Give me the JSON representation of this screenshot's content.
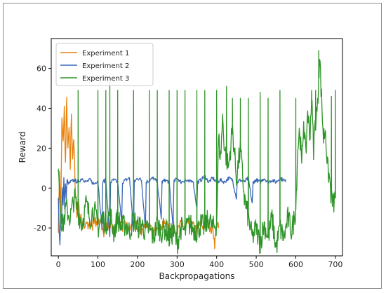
{
  "chart_data": {
    "type": "line",
    "xlabel": "Backpropagations",
    "ylabel": "Reward",
    "xlim": [
      -18,
      718
    ],
    "ylim": [
      -34,
      75
    ],
    "xticks": [
      0,
      100,
      200,
      300,
      400,
      500,
      600,
      700
    ],
    "yticks": [
      -20,
      0,
      20,
      40,
      60
    ],
    "legend_position": "top-left",
    "grid": false,
    "series": [
      {
        "name": "Experiment 1",
        "color": "#e8820c",
        "anchors": [
          [
            0,
            -20
          ],
          [
            3,
            10
          ],
          [
            6,
            -15
          ],
          [
            9,
            35
          ],
          [
            12,
            22
          ],
          [
            15,
            40
          ],
          [
            18,
            12
          ],
          [
            21,
            44
          ],
          [
            24,
            18
          ],
          [
            27,
            30
          ],
          [
            30,
            10
          ],
          [
            33,
            38
          ],
          [
            36,
            15
          ],
          [
            39,
            24
          ],
          [
            42,
            5
          ],
          [
            45,
            -10
          ],
          [
            48,
            -15
          ],
          [
            51,
            -5
          ],
          [
            54,
            -18
          ],
          [
            57,
            -12
          ],
          [
            60,
            -20
          ],
          [
            63,
            -15
          ],
          [
            66,
            -22
          ],
          [
            70,
            -17
          ],
          [
            75,
            -20
          ],
          [
            80,
            -16
          ],
          [
            85,
            -21
          ],
          [
            90,
            -14
          ],
          [
            95,
            -18
          ],
          [
            100,
            -15
          ],
          [
            105,
            -20
          ],
          [
            110,
            -16
          ],
          [
            115,
            -22
          ],
          [
            120,
            -18
          ],
          [
            125,
            -20
          ],
          [
            130,
            -17
          ],
          [
            135,
            -19
          ],
          [
            140,
            -22
          ],
          [
            145,
            -18
          ],
          [
            150,
            -15
          ],
          [
            160,
            -20
          ],
          [
            170,
            -18
          ],
          [
            180,
            -21
          ],
          [
            190,
            -17
          ],
          [
            200,
            -20
          ],
          [
            210,
            -22
          ],
          [
            220,
            -18
          ],
          [
            230,
            -19
          ],
          [
            240,
            -23
          ],
          [
            250,
            -18
          ],
          [
            260,
            -20
          ],
          [
            270,
            -17
          ],
          [
            280,
            -21
          ],
          [
            290,
            -19
          ],
          [
            300,
            -22
          ],
          [
            310,
            -18
          ],
          [
            320,
            -20
          ],
          [
            330,
            -17
          ],
          [
            340,
            -19
          ],
          [
            350,
            -21
          ],
          [
            360,
            -18
          ],
          [
            370,
            -20
          ],
          [
            380,
            -17
          ],
          [
            385,
            -22
          ],
          [
            390,
            -19
          ],
          [
            395,
            -28
          ],
          [
            400,
            -18
          ],
          [
            405,
            -20
          ]
        ],
        "noise": 2.5
      },
      {
        "name": "Experiment 2",
        "color": "#3a67b8",
        "anchors": [
          [
            0,
            -5
          ],
          [
            2,
            -22
          ],
          [
            4,
            -29
          ],
          [
            6,
            -12
          ],
          [
            8,
            -18
          ],
          [
            10,
            0
          ],
          [
            12,
            -8
          ],
          [
            14,
            5
          ],
          [
            16,
            -10
          ],
          [
            18,
            3
          ],
          [
            20,
            -5
          ],
          [
            22,
            4
          ],
          [
            26,
            2
          ],
          [
            30,
            3
          ],
          [
            40,
            4
          ],
          [
            50,
            3
          ],
          [
            60,
            5
          ],
          [
            70,
            3
          ],
          [
            80,
            4
          ],
          [
            90,
            2
          ],
          [
            100,
            4
          ],
          [
            110,
            -20
          ],
          [
            112,
            3
          ],
          [
            120,
            4
          ],
          [
            130,
            -25
          ],
          [
            132,
            3
          ],
          [
            140,
            4
          ],
          [
            150,
            3
          ],
          [
            160,
            -18
          ],
          [
            162,
            3
          ],
          [
            170,
            4
          ],
          [
            180,
            5
          ],
          [
            190,
            -22
          ],
          [
            192,
            3
          ],
          [
            200,
            5
          ],
          [
            210,
            4
          ],
          [
            220,
            -20
          ],
          [
            222,
            3
          ],
          [
            230,
            4
          ],
          [
            240,
            5
          ],
          [
            250,
            3
          ],
          [
            260,
            -15
          ],
          [
            262,
            3
          ],
          [
            270,
            4
          ],
          [
            280,
            3
          ],
          [
            290,
            -20
          ],
          [
            292,
            3
          ],
          [
            300,
            5
          ],
          [
            310,
            3
          ],
          [
            320,
            4
          ],
          [
            330,
            3
          ],
          [
            340,
            4
          ],
          [
            350,
            -10
          ],
          [
            352,
            3
          ],
          [
            360,
            4
          ],
          [
            370,
            6
          ],
          [
            380,
            3
          ],
          [
            390,
            5
          ],
          [
            400,
            3
          ],
          [
            410,
            4
          ],
          [
            420,
            3
          ],
          [
            430,
            5
          ],
          [
            440,
            4
          ],
          [
            450,
            -5
          ],
          [
            452,
            3
          ],
          [
            460,
            4
          ],
          [
            470,
            3
          ],
          [
            480,
            5
          ],
          [
            490,
            -8
          ],
          [
            492,
            3
          ],
          [
            500,
            4
          ],
          [
            510,
            3
          ],
          [
            520,
            5
          ],
          [
            530,
            3
          ],
          [
            540,
            4
          ],
          [
            550,
            3
          ],
          [
            560,
            5
          ],
          [
            570,
            4
          ],
          [
            575,
            3
          ]
        ],
        "noise": 1.0
      },
      {
        "name": "Experiment 3",
        "color": "#2e9428",
        "anchors": [
          [
            0,
            15
          ],
          [
            5,
            -10
          ],
          [
            10,
            -20
          ],
          [
            20,
            -10
          ],
          [
            30,
            -15
          ],
          [
            40,
            -5
          ],
          [
            50,
            -12
          ],
          [
            60,
            -18
          ],
          [
            70,
            -8
          ],
          [
            80,
            -15
          ],
          [
            90,
            -10
          ],
          [
            100,
            -20
          ],
          [
            110,
            -15
          ],
          [
            120,
            -18
          ],
          [
            130,
            -12
          ],
          [
            140,
            -22
          ],
          [
            150,
            -15
          ],
          [
            160,
            -20
          ],
          [
            170,
            -18
          ],
          [
            180,
            -22
          ],
          [
            190,
            -15
          ],
          [
            200,
            -20
          ],
          [
            210,
            -18
          ],
          [
            220,
            -22
          ],
          [
            230,
            -20
          ],
          [
            240,
            -25
          ],
          [
            250,
            -18
          ],
          [
            260,
            -22
          ],
          [
            270,
            -20
          ],
          [
            280,
            -25
          ],
          [
            290,
            -22
          ],
          [
            300,
            -28
          ],
          [
            310,
            -20
          ],
          [
            320,
            -22
          ],
          [
            330,
            -18
          ],
          [
            340,
            -20
          ],
          [
            350,
            -22
          ],
          [
            360,
            -18
          ],
          [
            370,
            -20
          ],
          [
            380,
            -15
          ],
          [
            390,
            -20
          ],
          [
            400,
            -18
          ],
          [
            405,
            25
          ],
          [
            410,
            15
          ],
          [
            415,
            35
          ],
          [
            420,
            20
          ],
          [
            430,
            10
          ],
          [
            440,
            30
          ],
          [
            450,
            5
          ],
          [
            460,
            20
          ],
          [
            470,
            -5
          ],
          [
            480,
            -15
          ],
          [
            490,
            -25
          ],
          [
            500,
            -20
          ],
          [
            510,
            -28
          ],
          [
            520,
            -18
          ],
          [
            530,
            -25
          ],
          [
            540,
            -15
          ],
          [
            550,
            -30
          ],
          [
            560,
            -20
          ],
          [
            570,
            -25
          ],
          [
            580,
            -15
          ],
          [
            590,
            -22
          ],
          [
            600,
            -10
          ],
          [
            605,
            20
          ],
          [
            610,
            30
          ],
          [
            615,
            10
          ],
          [
            620,
            35
          ],
          [
            625,
            15
          ],
          [
            630,
            40
          ],
          [
            635,
            25
          ],
          [
            640,
            45
          ],
          [
            645,
            20
          ],
          [
            650,
            35
          ],
          [
            655,
            40
          ],
          [
            660,
            68
          ],
          [
            665,
            45
          ],
          [
            670,
            25
          ],
          [
            675,
            30
          ],
          [
            680,
            10
          ],
          [
            685,
            5
          ],
          [
            690,
            -5
          ],
          [
            695,
            -8
          ],
          [
            700,
            -5
          ]
        ],
        "noise": 6,
        "spikes": [
          [
            50,
            49
          ],
          [
            100,
            49
          ],
          [
            120,
            49
          ],
          [
            130,
            53
          ],
          [
            150,
            49
          ],
          [
            190,
            49
          ],
          [
            230,
            49
          ],
          [
            250,
            49
          ],
          [
            280,
            49
          ],
          [
            300,
            49
          ],
          [
            320,
            49
          ],
          [
            350,
            49
          ],
          [
            370,
            49
          ],
          [
            400,
            49
          ],
          [
            425,
            51
          ],
          [
            440,
            45
          ],
          [
            460,
            45
          ],
          [
            480,
            45
          ],
          [
            510,
            48
          ],
          [
            530,
            45
          ],
          [
            560,
            49
          ],
          [
            600,
            45
          ],
          [
            640,
            49
          ],
          [
            650,
            49
          ],
          [
            658,
            69
          ],
          [
            690,
            46
          ],
          [
            700,
            49
          ]
        ]
      }
    ]
  }
}
